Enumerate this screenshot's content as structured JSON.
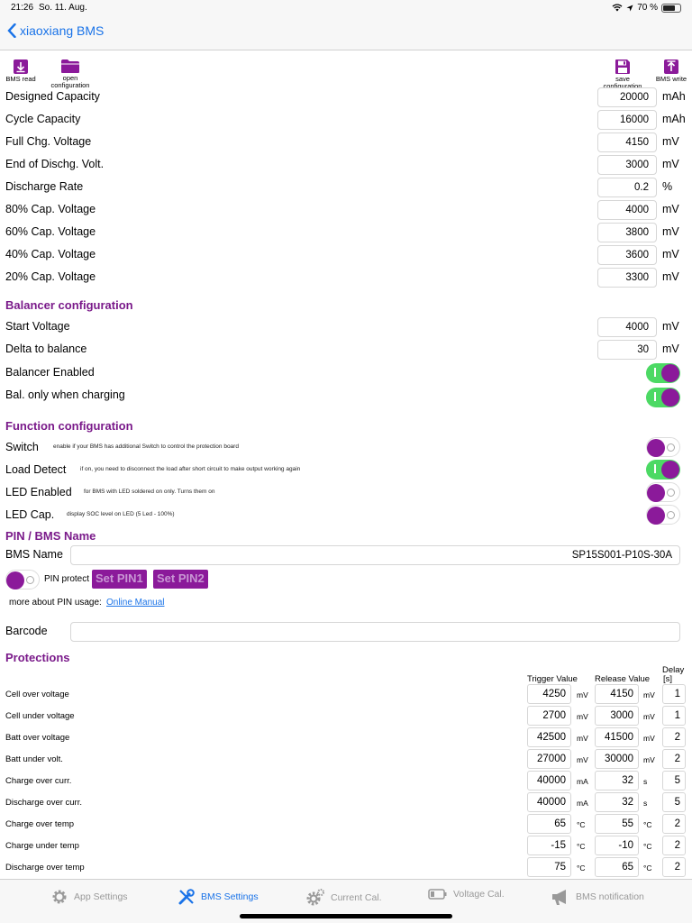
{
  "status": {
    "time": "21:26",
    "date": "So. 11. Aug.",
    "battery": "70 %"
  },
  "nav": {
    "back_label": "xiaoxiang BMS"
  },
  "toolbar": {
    "bms_read": "BMS read",
    "open_config_1": "open",
    "open_config_2": "configuration",
    "save_config_1": "save",
    "save_config_2": "configuration",
    "bms_write": "BMS write"
  },
  "capacity": [
    {
      "label": "Designed Capacity",
      "value": "20000",
      "unit": "mAh"
    },
    {
      "label": "Cycle Capacity",
      "value": "16000",
      "unit": "mAh"
    },
    {
      "label": "Full Chg. Voltage",
      "value": "4150",
      "unit": "mV"
    },
    {
      "label": "End of Dischg. Volt.",
      "value": "3000",
      "unit": "mV"
    },
    {
      "label": "Discharge Rate",
      "value": "0.2",
      "unit": "%"
    },
    {
      "label": "80% Cap. Voltage",
      "value": "4000",
      "unit": "mV"
    },
    {
      "label": "60% Cap. Voltage",
      "value": "3800",
      "unit": "mV"
    },
    {
      "label": "40% Cap. Voltage",
      "value": "3600",
      "unit": "mV"
    },
    {
      "label": "20% Cap. Voltage",
      "value": "3300",
      "unit": "mV"
    }
  ],
  "balancer": {
    "title": "Balancer configuration",
    "start_label": "Start Voltage",
    "start_value": "4000",
    "start_unit": "mV",
    "delta_label": "Delta to balance",
    "delta_value": "30",
    "delta_unit": "mV",
    "enabled_label": "Balancer Enabled",
    "only_charging_label": "Bal. only when charging"
  },
  "function": {
    "title": "Function configuration",
    "items": [
      {
        "label": "Switch",
        "note": "enable if your BMS has additional Switch to control the protection board",
        "on": false
      },
      {
        "label": "Load Detect",
        "note": "if on, you need to disconnect the load after short circuit to make output working again",
        "on": true
      },
      {
        "label": "LED Enabled",
        "note": "for BMS with LED soldered on only. Turns them on",
        "on": false
      },
      {
        "label": "LED Cap.",
        "note": "display SOC level on LED (5 Led - 100%)",
        "on": false
      }
    ]
  },
  "pin": {
    "title": "PIN / BMS Name",
    "name_label": "BMS Name",
    "name_value": "SP15S001-P10S-30A",
    "protect_label": "PIN protect",
    "set_pin1": "Set PIN1",
    "set_pin2": "Set PIN2",
    "more_text": "more about PIN usage:",
    "manual_link": "Online Manual",
    "barcode_label": "Barcode",
    "barcode_value": ""
  },
  "protections": {
    "title": "Protections",
    "col_trigger": "Trigger Value",
    "col_release": "Release Value",
    "col_delay_1": "Delay",
    "col_delay_2": "[s]",
    "rows": [
      {
        "label": "Cell over voltage",
        "trigger": "4250",
        "tunit": "mV",
        "release": "4150",
        "runit": "mV",
        "delay": "1"
      },
      {
        "label": "Cell under voltage",
        "trigger": "2700",
        "tunit": "mV",
        "release": "3000",
        "runit": "mV",
        "delay": "1"
      },
      {
        "label": "Batt over voltage",
        "trigger": "42500",
        "tunit": "mV",
        "release": "41500",
        "runit": "mV",
        "delay": "2"
      },
      {
        "label": "Batt under volt.",
        "trigger": "27000",
        "tunit": "mV",
        "release": "30000",
        "runit": "mV",
        "delay": "2"
      },
      {
        "label": "Charge over curr.",
        "trigger": "40000",
        "tunit": "mA",
        "release": "32",
        "runit": "s",
        "delay": "5"
      },
      {
        "label": "Discharge over curr.",
        "trigger": "40000",
        "tunit": "mA",
        "release": "32",
        "runit": "s",
        "delay": "5"
      },
      {
        "label": "Charge over temp",
        "trigger": "65",
        "tunit": "°C",
        "release": "55",
        "runit": "°C",
        "delay": "2"
      },
      {
        "label": "Charge under temp",
        "trigger": "-15",
        "tunit": "°C",
        "release": "-10",
        "runit": "°C",
        "delay": "2"
      },
      {
        "label": "Discharge over temp",
        "trigger": "75",
        "tunit": "°C",
        "release": "65",
        "runit": "°C",
        "delay": "2"
      }
    ]
  },
  "tabs": [
    {
      "label": "App Settings",
      "icon": "gear-icon",
      "active": false
    },
    {
      "label": "BMS Settings",
      "icon": "wrench-icon",
      "active": true
    },
    {
      "label": "Current Cal.",
      "icon": "gear-icon",
      "active": false
    },
    {
      "label": "Voltage Cal.",
      "icon": "battery-icon",
      "active": false
    },
    {
      "label": "BMS notification",
      "icon": "megaphone-icon",
      "active": false
    }
  ],
  "colors": {
    "accent": "#8b1a9a",
    "toggle_on": "#4cd964",
    "link": "#1a73e8"
  }
}
